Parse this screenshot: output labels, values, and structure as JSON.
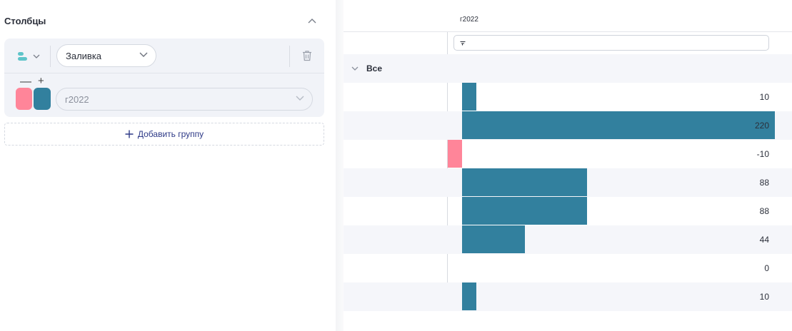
{
  "columns_panel": {
    "title": "Столбцы",
    "group": {
      "fill_select_value": "Заливка",
      "column_select_value": "г2022",
      "minus_label": "—",
      "plus_label": "+",
      "negative_color": "#ff8599",
      "positive_color": "#32809e"
    },
    "add_group_label": "Добавить группу",
    "icons": {
      "collapse": "chevron-up-icon",
      "type": "bar-chart-type-icon",
      "trash": "trash-icon"
    }
  },
  "grid": {
    "column_header": "г2022",
    "filter_icon": "filter-icon",
    "group_label": "Все",
    "rows": [
      {
        "value": 10,
        "label": "10"
      },
      {
        "value": 220,
        "label": "220"
      },
      {
        "value": -10,
        "label": "-10"
      },
      {
        "value": 88,
        "label": "88"
      },
      {
        "value": 88,
        "label": "88"
      },
      {
        "value": 44,
        "label": "44"
      },
      {
        "value": 0,
        "label": "0"
      },
      {
        "value": 10,
        "label": "10"
      }
    ]
  }
}
